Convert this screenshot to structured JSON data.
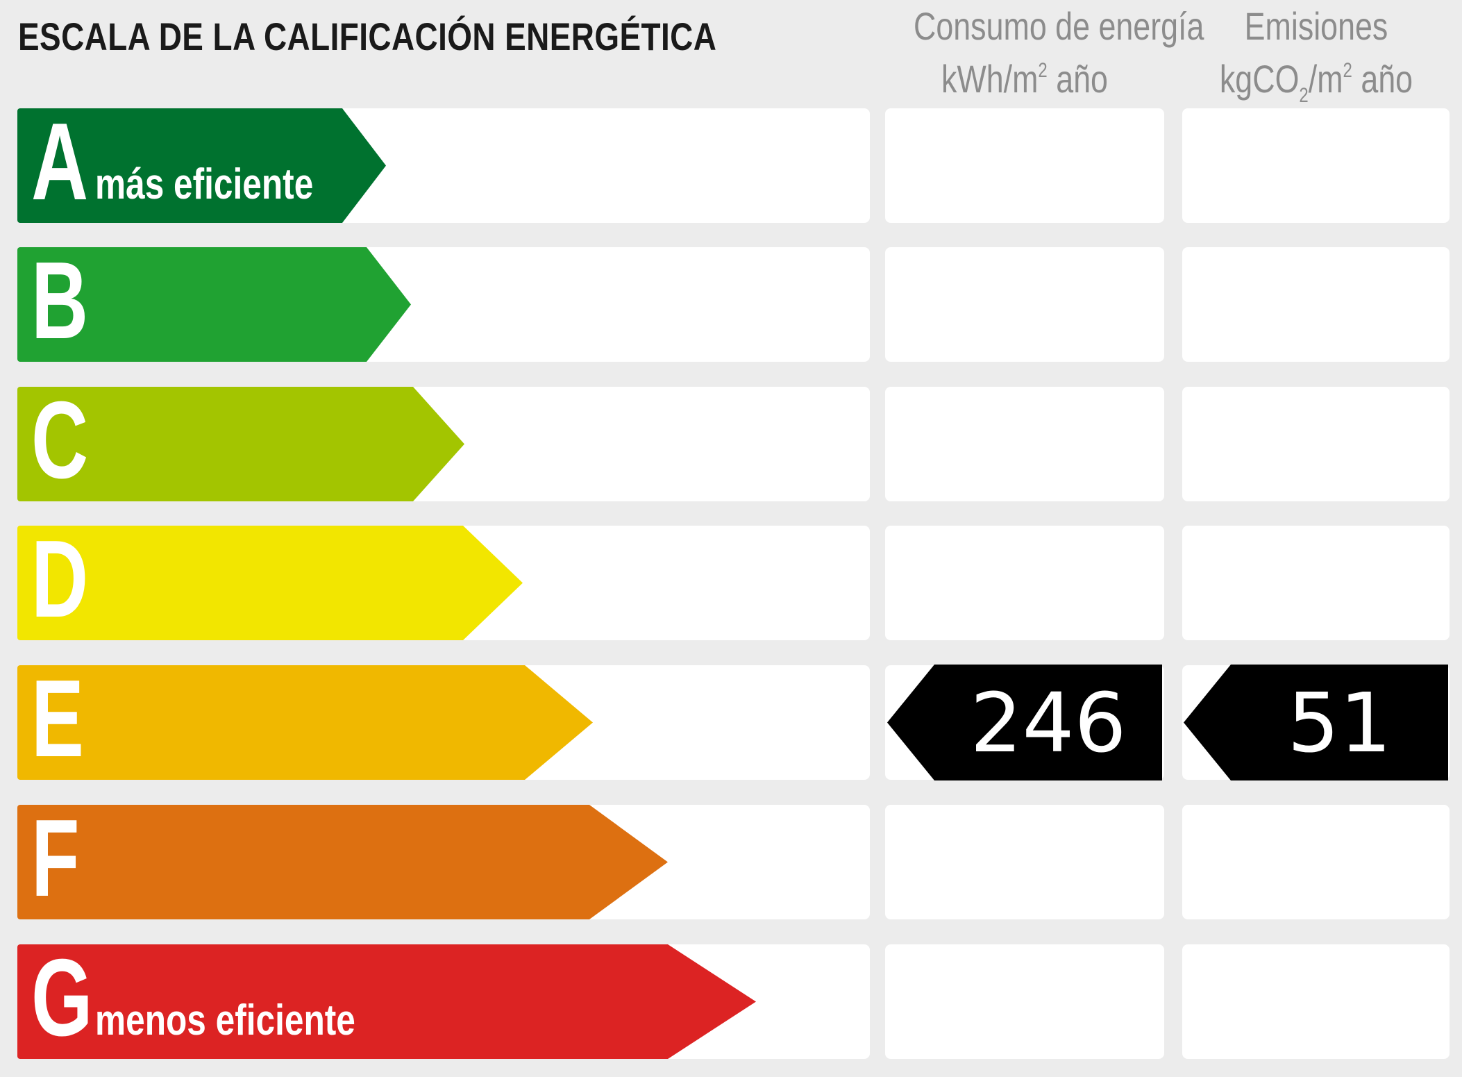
{
  "title": "ESCALA DE LA CALIFICACIÓN ENERGÉTICA",
  "columns": {
    "energy": {
      "line1": "Consumo de energía",
      "unit_pre": "kWh/m",
      "unit_sup": "2",
      "unit_post": " año"
    },
    "emissions": {
      "line1": "Emisiones",
      "unit_pre": "kgCO",
      "unit_sub": "2",
      "unit_mid": "/m",
      "unit_sup": "2",
      "unit_post": " año"
    }
  },
  "classes": [
    {
      "letter": "A",
      "label": "más eficiente",
      "color": "#00722f"
    },
    {
      "letter": "B",
      "label": "",
      "color": "#20a232"
    },
    {
      "letter": "C",
      "label": "",
      "color": "#a3c500"
    },
    {
      "letter": "D",
      "label": "",
      "color": "#f2e600"
    },
    {
      "letter": "E",
      "label": "",
      "color": "#f0b800"
    },
    {
      "letter": "F",
      "label": "",
      "color": "#dd7011"
    },
    {
      "letter": "G",
      "label": "menos eficiente",
      "color": "#dc2323"
    }
  ],
  "rating": {
    "class": "E",
    "energy_value": "246",
    "emissions_value": "51",
    "indicator_color": "#000000"
  }
}
